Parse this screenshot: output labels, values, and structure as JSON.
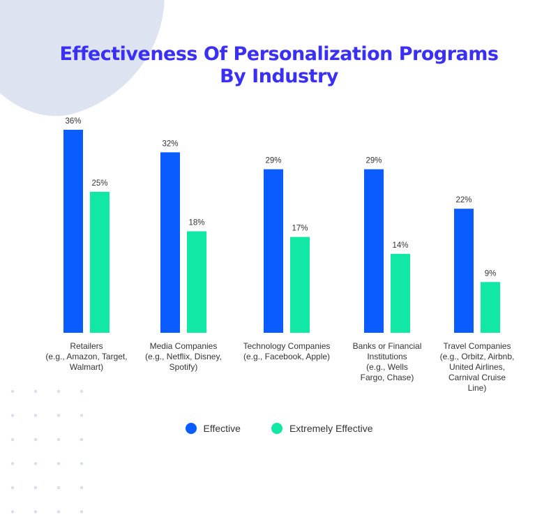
{
  "colors": {
    "effective": "#0a5cff",
    "extremely_effective": "#11e8a6",
    "title": "#3a2ff5"
  },
  "chart_data": {
    "type": "bar",
    "title_lines": [
      "Effectiveness Of Personalization Programs",
      "By Industry"
    ],
    "categories": [
      [
        "Retailers",
        "(e.g., Amazon, Target,",
        "Walmart)"
      ],
      [
        "Media Companies",
        "(e.g., Netflix, Disney,",
        "Spotify)"
      ],
      [
        "Technology Companies",
        "(e.g., Facebook, Apple)"
      ],
      [
        "Banks or Financial",
        "Institutions",
        "(e.g., Wells",
        "Fargo, Chase)"
      ],
      [
        "Travel Companies",
        "(e.g., Orbitz, Airbnb,",
        "United Airlines,",
        "Carnival Cruise",
        "Line)"
      ]
    ],
    "series": [
      {
        "name": "Effective",
        "values": [
          36,
          32,
          29,
          29,
          22
        ],
        "labels": [
          "36%",
          "32%",
          "29%",
          "29%",
          "22%"
        ]
      },
      {
        "name": "Extremely Effective",
        "values": [
          25,
          18,
          17,
          14,
          9
        ],
        "labels": [
          "25%",
          "18%",
          "17%",
          "14%",
          "9%"
        ]
      }
    ],
    "ylim": [
      0,
      36
    ],
    "grid": false,
    "legend": "bottom"
  }
}
